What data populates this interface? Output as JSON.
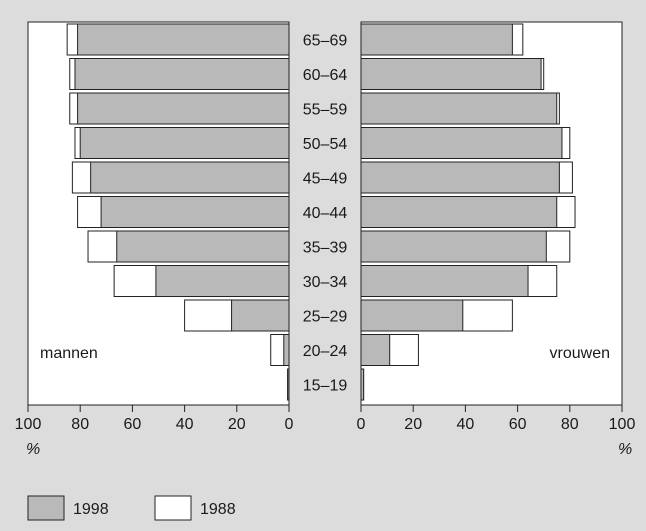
{
  "chart_data": {
    "type": "bar",
    "subtype": "mirrored-horizontal-bar",
    "categories": [
      "65–69",
      "60–64",
      "55–59",
      "50–54",
      "45–49",
      "40–44",
      "35–39",
      "30–34",
      "25–29",
      "20–24",
      "15–19"
    ],
    "left_panel": {
      "label": "mannen",
      "series": [
        {
          "name": "1998",
          "values": [
            81,
            82,
            81,
            80,
            76,
            72,
            66,
            51,
            22,
            2,
            0.5
          ]
        },
        {
          "name": "1988",
          "values": [
            85,
            84,
            84,
            82,
            83,
            81,
            77,
            67,
            40,
            7,
            0.5
          ]
        }
      ]
    },
    "right_panel": {
      "label": "vrouwen",
      "series": [
        {
          "name": "1998",
          "values": [
            58,
            69,
            75,
            77,
            76,
            75,
            71,
            64,
            39,
            11,
            1
          ]
        },
        {
          "name": "1988",
          "values": [
            62,
            70,
            76,
            80,
            81,
            82,
            80,
            75,
            58,
            22,
            1
          ]
        }
      ]
    },
    "x_ticks": [
      "100",
      "80",
      "60",
      "40",
      "20",
      "0"
    ],
    "x_ticks_right": [
      "0",
      "20",
      "40",
      "60",
      "80",
      "100"
    ],
    "xlabel_unit": "%",
    "xlim": [
      0,
      100
    ],
    "legend": {
      "position": "bottom-left",
      "items": [
        {
          "label": "1998",
          "color": "#b9b9b9"
        },
        {
          "label": "1988",
          "color": "#ffffff"
        }
      ]
    },
    "colors": {
      "s1998": "#b9b9b9",
      "s1988": "#ffffff",
      "background": "#dcdcdc",
      "plot": "#ffffff",
      "stroke": "#222222"
    },
    "grid": false
  }
}
